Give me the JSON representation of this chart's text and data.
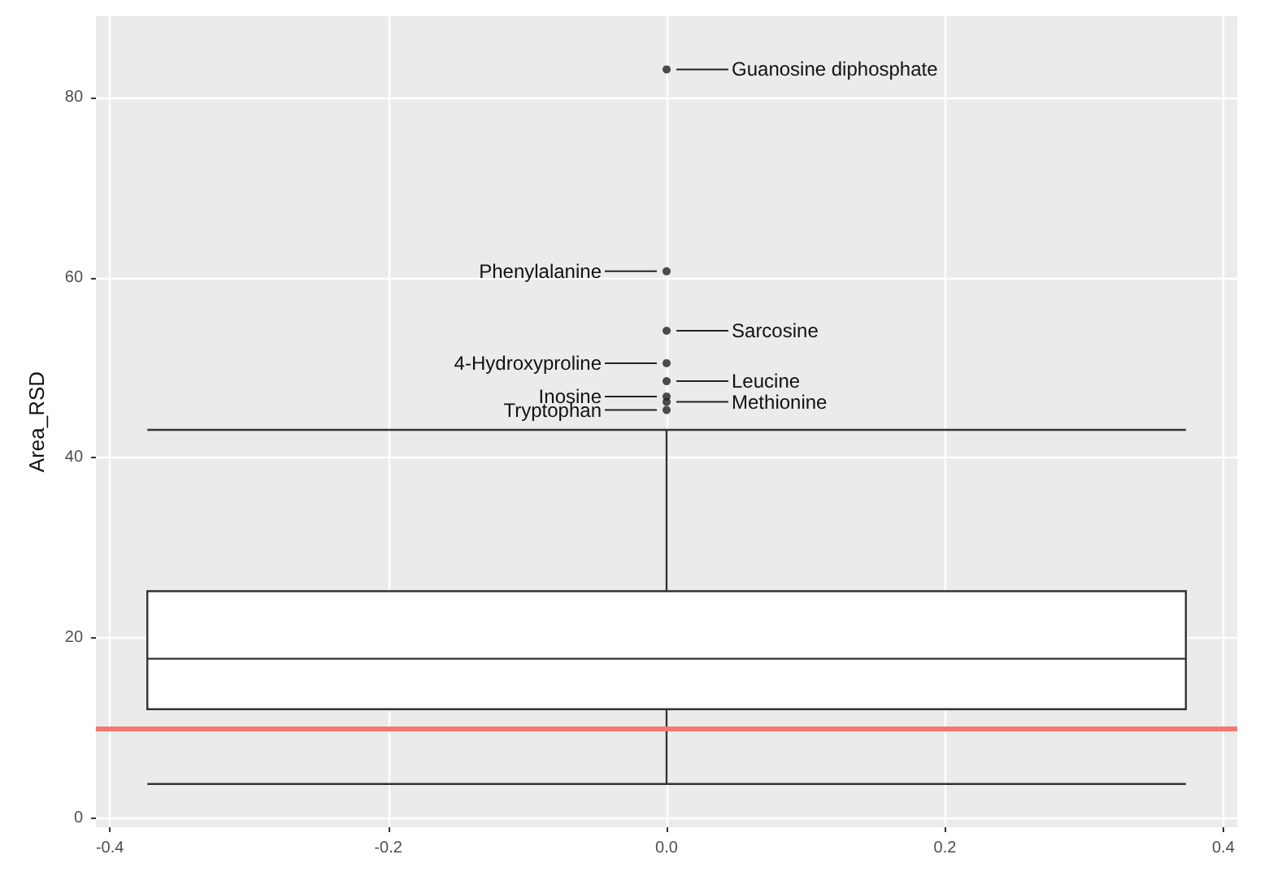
{
  "chart_data": {
    "type": "box",
    "ylabel": "Area_RSD",
    "categories": [
      null
    ],
    "boxes": [
      {
        "low": 3.8,
        "q1": 12.1,
        "median": 17.7,
        "q3": 25.2,
        "high": 43.1,
        "outliers": [
          83.1,
          60.7,
          54.1,
          50.5,
          48.5,
          46.8,
          46.2,
          45.3
        ]
      }
    ],
    "color": "#ffffff",
    "x2lim": [
      -0.41,
      0.41
    ],
    "x2ticks": [
      -0.4,
      -0.2,
      {
        "value": 0,
        "label": "0.0"
      },
      0.2,
      0.4
    ],
    "ylim": [
      -1,
      89
    ],
    "yticks": [
      0,
      20,
      40,
      60,
      80
    ],
    "grid": true,
    "ref_lines": [
      {
        "axis": "y",
        "value": 10,
        "color": "#f8766d"
      }
    ],
    "annotations": [
      "Guanosine diphosphate",
      "Phenylalanine",
      "Sarcosine",
      "4-Hydroxyproline",
      "Leucine",
      "Inosine",
      "Methionine",
      "Tryptophan"
    ]
  }
}
